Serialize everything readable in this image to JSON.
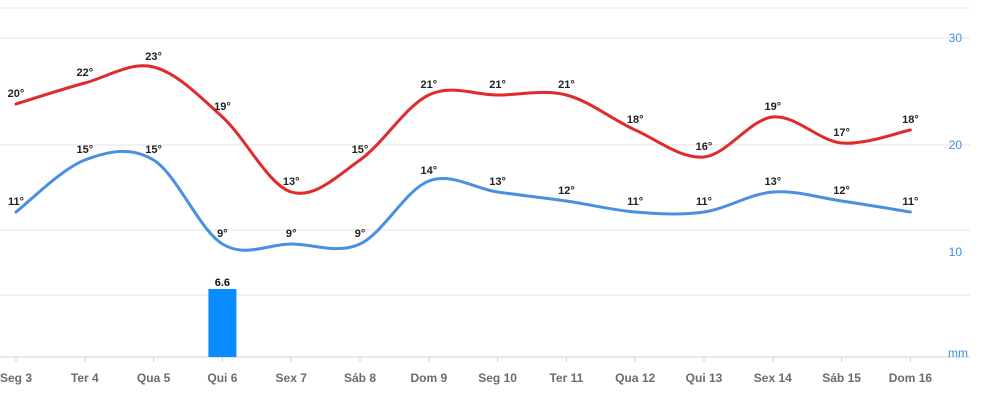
{
  "chart_data": {
    "type": "line",
    "categories": [
      "Seg 3",
      "Ter 4",
      "Qua 5",
      "Qui 6",
      "Sex 7",
      "Sáb 8",
      "Dom 9",
      "Seg 10",
      "Ter 11",
      "Qua 12",
      "Qui 13",
      "Sex 14",
      "Sáb 15",
      "Dom 16"
    ],
    "series": [
      {
        "type": "line",
        "color": "#e02b2b",
        "values": [
          20,
          22,
          23,
          19,
          13,
          15,
          21,
          21,
          21,
          18,
          16,
          19,
          17,
          18
        ],
        "labels": [
          "20°",
          "22°",
          "23°",
          "19°",
          "13°",
          "15°",
          "21°",
          "21°",
          "21°",
          "18°",
          "16°",
          "19°",
          "17°",
          "18°"
        ]
      },
      {
        "type": "line",
        "color": "#4a90e2",
        "values": [
          11,
          15,
          15,
          9,
          9,
          9,
          14,
          13,
          12,
          11,
          11,
          13,
          12,
          11
        ],
        "labels": [
          "11°",
          "15°",
          "15°",
          "9°",
          "9°",
          "9°",
          "14°",
          "13°",
          "12°",
          "11°",
          "11°",
          "13°",
          "12°",
          "11°"
        ]
      },
      {
        "type": "bar",
        "color": "#0a8cff",
        "values": [
          0,
          0,
          0,
          6.6,
          0,
          0,
          0,
          0,
          0,
          0,
          0,
          0,
          0,
          0
        ],
        "labels": [
          "",
          "",
          "",
          "6.6",
          "",
          "",
          "",
          "",
          "",
          "",
          "",
          "",
          "",
          ""
        ]
      }
    ],
    "y_axis_right": {
      "ticks": [
        "30",
        "20",
        "10"
      ],
      "unit_label": "mm",
      "color": "#3d8fe8"
    },
    "xlabel": "",
    "ylabel": "",
    "grid": true
  }
}
